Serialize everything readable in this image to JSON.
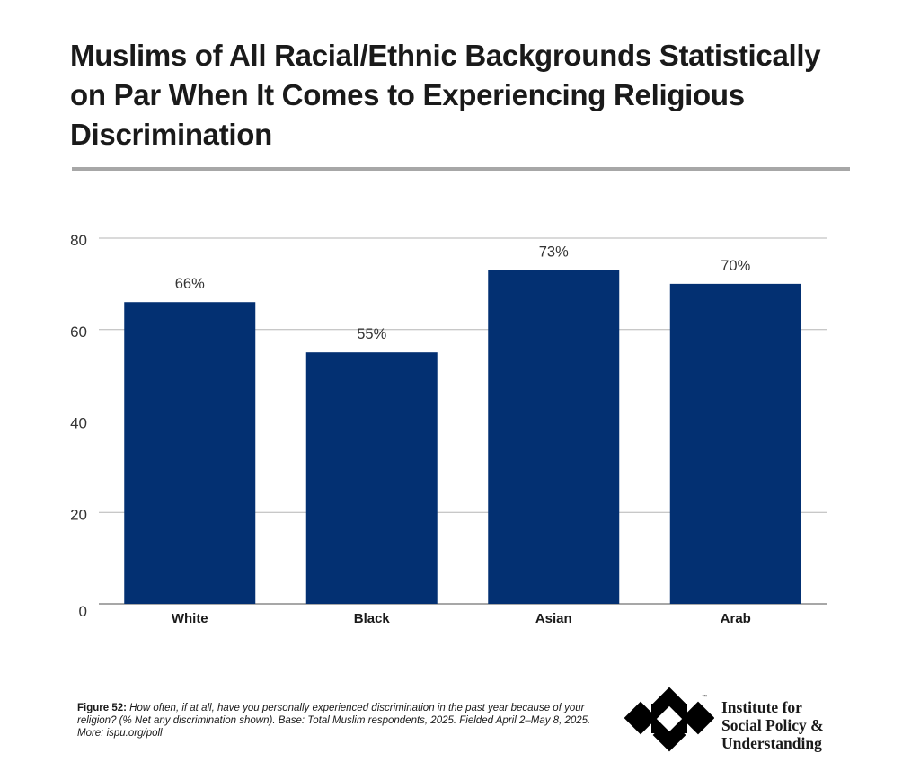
{
  "title": "Muslims of All Racial/Ethnic Backgrounds Statistically on Par When It Comes to Experiencing Religious Discrimination",
  "colors": {
    "bar": "#033072",
    "grid": "#b5b5b5",
    "axis": "#8a8a8a",
    "rule": "#a7a7a7",
    "text": "#1a1a1a"
  },
  "chart_data": {
    "type": "bar",
    "categories": [
      "White",
      "Black",
      "Asian",
      "Arab"
    ],
    "values": [
      66,
      55,
      73,
      70
    ],
    "data_labels": [
      "66%",
      "55%",
      "73%",
      "70%"
    ],
    "y_ticks": [
      0,
      20,
      40,
      60,
      80
    ],
    "ylim": [
      0,
      80
    ],
    "title": "",
    "xlabel": "",
    "ylabel": "",
    "grid": true,
    "legend": "none"
  },
  "caption": {
    "figure_label": "Figure 52:",
    "text": "How often, if at all, have you personally experienced discrimination in the past year because of your religion? (% Net any discrimination shown). Base: Total Muslim respondents, 2025. Fielded April 2–May 8, 2025. More: ispu.org/poll"
  },
  "logo": {
    "lines": [
      "Institute for",
      "Social Policy &",
      "Understanding"
    ],
    "trademark": "™",
    "icon": "ispu-logo-icon"
  }
}
